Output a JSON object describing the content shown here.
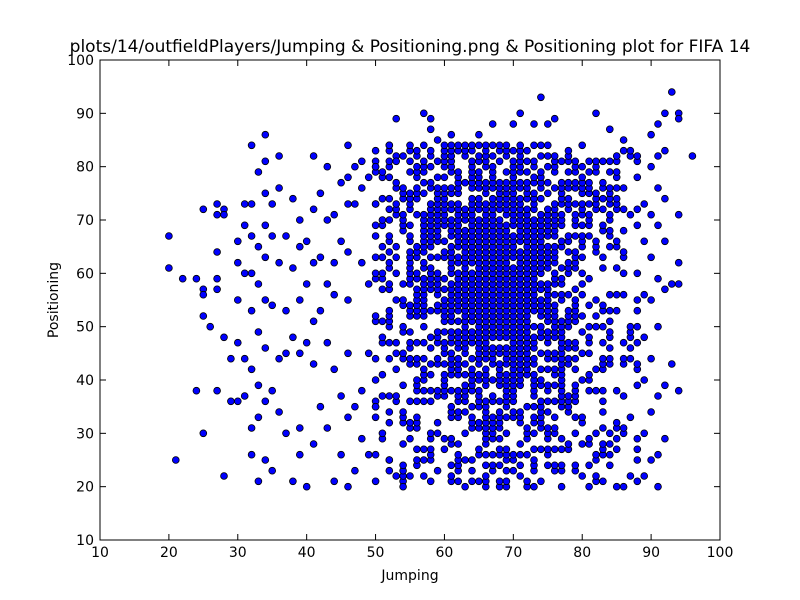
{
  "chart_data": {
    "type": "scatter",
    "title": "plots/14/outfieldPlayers/Jumping & Positioning.png & Positioning plot for FIFA 14",
    "xlabel": "Jumping",
    "ylabel": "Positioning",
    "xlim": [
      10,
      100
    ],
    "ylim": [
      10,
      100
    ],
    "xticks": [
      10,
      20,
      30,
      40,
      50,
      60,
      70,
      80,
      90,
      100
    ],
    "yticks": [
      10,
      20,
      30,
      40,
      50,
      60,
      70,
      80,
      90,
      100
    ],
    "grid": false,
    "marker_color": "#0000ff",
    "marker_edge_color": "#000000",
    "sparse_points": [
      [
        20,
        67
      ],
      [
        20,
        61
      ],
      [
        21,
        25
      ],
      [
        22,
        59
      ],
      [
        24,
        59
      ],
      [
        24,
        38
      ],
      [
        25,
        72
      ],
      [
        25,
        57
      ],
      [
        25,
        56
      ],
      [
        25,
        52
      ],
      [
        25,
        30
      ],
      [
        26,
        50
      ],
      [
        27,
        73
      ],
      [
        27,
        71
      ],
      [
        27,
        64
      ],
      [
        27,
        59
      ],
      [
        27,
        57
      ],
      [
        27,
        38
      ],
      [
        28,
        72
      ],
      [
        28,
        71
      ],
      [
        28,
        48
      ],
      [
        28,
        22
      ],
      [
        29,
        44
      ],
      [
        29,
        36
      ],
      [
        30,
        66
      ],
      [
        30,
        62
      ],
      [
        30,
        55
      ],
      [
        30,
        47
      ],
      [
        30,
        36
      ],
      [
        31,
        73
      ],
      [
        31,
        69
      ],
      [
        31,
        60
      ],
      [
        31,
        44
      ],
      [
        31,
        37
      ],
      [
        32,
        84
      ],
      [
        32,
        73
      ],
      [
        32,
        67
      ],
      [
        32,
        60
      ],
      [
        32,
        53
      ],
      [
        32,
        42
      ],
      [
        32,
        31
      ],
      [
        32,
        26
      ],
      [
        33,
        79
      ],
      [
        33,
        65
      ],
      [
        33,
        58
      ],
      [
        33,
        49
      ],
      [
        33,
        39
      ],
      [
        33,
        33
      ],
      [
        33,
        21
      ],
      [
        34,
        86
      ],
      [
        34,
        81
      ],
      [
        34,
        75
      ],
      [
        34,
        69
      ],
      [
        34,
        63
      ],
      [
        34,
        55
      ],
      [
        34,
        46
      ],
      [
        34,
        36
      ],
      [
        34,
        25
      ],
      [
        35,
        73
      ],
      [
        35,
        67
      ],
      [
        35,
        54
      ],
      [
        35,
        38
      ],
      [
        35,
        23
      ],
      [
        36,
        82
      ],
      [
        36,
        76
      ],
      [
        36,
        62
      ],
      [
        36,
        44
      ],
      [
        36,
        34
      ],
      [
        37,
        67
      ],
      [
        37,
        53
      ],
      [
        37,
        45
      ],
      [
        37,
        30
      ],
      [
        38,
        74
      ],
      [
        38,
        61
      ],
      [
        38,
        48
      ],
      [
        38,
        21
      ],
      [
        39,
        70
      ],
      [
        39,
        65
      ],
      [
        39,
        55
      ],
      [
        39,
        45
      ],
      [
        39,
        31
      ],
      [
        39,
        26
      ],
      [
        40,
        66
      ],
      [
        40,
        58
      ],
      [
        40,
        47
      ],
      [
        40,
        20
      ],
      [
        41,
        82
      ],
      [
        41,
        72
      ],
      [
        41,
        62
      ],
      [
        41,
        51
      ],
      [
        41,
        43
      ],
      [
        41,
        28
      ],
      [
        42,
        75
      ],
      [
        42,
        63
      ],
      [
        42,
        53
      ],
      [
        42,
        35
      ],
      [
        43,
        80
      ],
      [
        43,
        70
      ],
      [
        43,
        58
      ],
      [
        43,
        47
      ],
      [
        43,
        31
      ],
      [
        44,
        71
      ],
      [
        44,
        62
      ],
      [
        44,
        56
      ],
      [
        44,
        42
      ],
      [
        44,
        21
      ],
      [
        45,
        77
      ],
      [
        45,
        66
      ],
      [
        45,
        37
      ],
      [
        45,
        26
      ],
      [
        46,
        84
      ],
      [
        46,
        78
      ],
      [
        46,
        73
      ],
      [
        46,
        64
      ],
      [
        46,
        55
      ],
      [
        46,
        45
      ],
      [
        46,
        33
      ],
      [
        46,
        20
      ],
      [
        47,
        80
      ],
      [
        47,
        73
      ],
      [
        47,
        35
      ],
      [
        47,
        23
      ],
      [
        48,
        81
      ],
      [
        48,
        76
      ],
      [
        48,
        62
      ],
      [
        48,
        38
      ],
      [
        48,
        29
      ],
      [
        49,
        78
      ],
      [
        49,
        58
      ],
      [
        49,
        45
      ],
      [
        49,
        26
      ],
      [
        50,
        80
      ],
      [
        50,
        73
      ],
      [
        50,
        60
      ],
      [
        50,
        35
      ],
      [
        50,
        21
      ],
      [
        51,
        74
      ],
      [
        51,
        48
      ],
      [
        51,
        30
      ],
      [
        52,
        84
      ],
      [
        52,
        78
      ],
      [
        52,
        37
      ],
      [
        52,
        25
      ],
      [
        53,
        89
      ],
      [
        53,
        81
      ],
      [
        53,
        22
      ],
      [
        54,
        82
      ],
      [
        54,
        20
      ],
      [
        57,
        90
      ],
      [
        58,
        89
      ],
      [
        58,
        87
      ],
      [
        59,
        85
      ],
      [
        61,
        86
      ],
      [
        65,
        86
      ],
      [
        67,
        88
      ],
      [
        70,
        88
      ],
      [
        71,
        90
      ],
      [
        73,
        88
      ],
      [
        74,
        93
      ],
      [
        75,
        88
      ],
      [
        76,
        89
      ],
      [
        82,
        90
      ],
      [
        84,
        87
      ],
      [
        86,
        85
      ],
      [
        88,
        82
      ],
      [
        88,
        78
      ],
      [
        89,
        73
      ],
      [
        89,
        66
      ],
      [
        89,
        56
      ],
      [
        89,
        48
      ],
      [
        89,
        40
      ],
      [
        89,
        30
      ],
      [
        89,
        22
      ],
      [
        90,
        86
      ],
      [
        90,
        80
      ],
      [
        90,
        71
      ],
      [
        90,
        63
      ],
      [
        90,
        55
      ],
      [
        90,
        44
      ],
      [
        90,
        34
      ],
      [
        90,
        25
      ],
      [
        91,
        88
      ],
      [
        91,
        82
      ],
      [
        91,
        76
      ],
      [
        91,
        69
      ],
      [
        91,
        59
      ],
      [
        91,
        50
      ],
      [
        91,
        37
      ],
      [
        91,
        26
      ],
      [
        91,
        20
      ],
      [
        92,
        90
      ],
      [
        92,
        83
      ],
      [
        92,
        74
      ],
      [
        92,
        66
      ],
      [
        92,
        57
      ],
      [
        92,
        39
      ],
      [
        92,
        29
      ],
      [
        93,
        94
      ],
      [
        93,
        58
      ],
      [
        93,
        43
      ],
      [
        94,
        90
      ],
      [
        94,
        89
      ],
      [
        94,
        71
      ],
      [
        94,
        62
      ],
      [
        94,
        58
      ],
      [
        94,
        38
      ],
      [
        96,
        82
      ]
    ],
    "dense_region": {
      "x_range": [
        50,
        88
      ],
      "y_range": [
        20,
        84
      ],
      "peak_x": 68,
      "peak_y": 60
    }
  }
}
